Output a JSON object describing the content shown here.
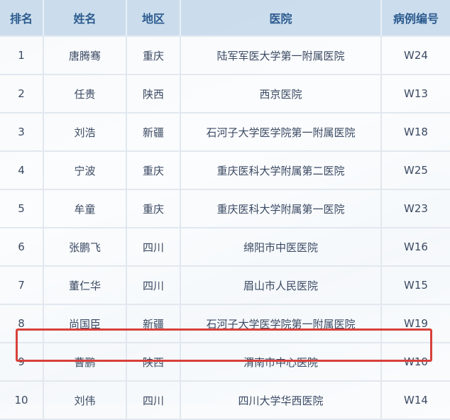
{
  "table": {
    "headers": [
      "排名",
      "姓名",
      "地区",
      "医院",
      "病例编号"
    ],
    "rows": [
      {
        "rank": "1",
        "name": "唐腾骞",
        "region": "重庆",
        "hospital": "陆军军医大学第一附属医院",
        "case_id": "W24"
      },
      {
        "rank": "2",
        "name": "任贵",
        "region": "陕西",
        "hospital": "西京医院",
        "case_id": "W13"
      },
      {
        "rank": "3",
        "name": "刘浩",
        "region": "新疆",
        "hospital": "石河子大学医学院第一附属医院",
        "case_id": "W18"
      },
      {
        "rank": "4",
        "name": "宁波",
        "region": "重庆",
        "hospital": "重庆医科大学附属第二医院",
        "case_id": "W25"
      },
      {
        "rank": "5",
        "name": "牟童",
        "region": "重庆",
        "hospital": "重庆医科大学附属第一医院",
        "case_id": "W23"
      },
      {
        "rank": "6",
        "name": "张鹏飞",
        "region": "四川",
        "hospital": "绵阳市中医医院",
        "case_id": "W16"
      },
      {
        "rank": "7",
        "name": "董仁华",
        "region": "四川",
        "hospital": "眉山市人民医院",
        "case_id": "W15"
      },
      {
        "rank": "8",
        "name": "尚国臣",
        "region": "新疆",
        "hospital": "石河子大学医学院第一附属医院",
        "case_id": "W19"
      },
      {
        "rank": "9",
        "name": "曹鹏",
        "region": "陕西",
        "hospital": "渭南市中心医院",
        "case_id": "W10"
      },
      {
        "rank": "10",
        "name": "刘伟",
        "region": "四川",
        "hospital": "四川大学华西医院",
        "case_id": "W14"
      }
    ],
    "highlighted_rank": "9",
    "highlight_color": "#d8403a"
  }
}
